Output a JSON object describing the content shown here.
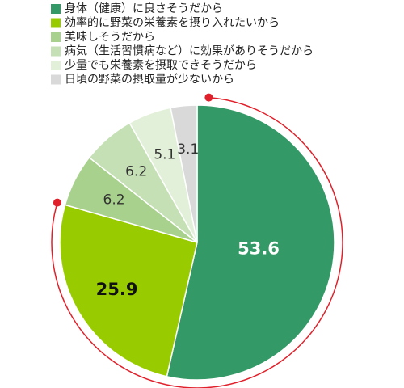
{
  "chart_data": {
    "type": "pie",
    "categories": [
      "身体（健康）に良さそうだから",
      "効率的に野菜の栄養素を摂り入れたいから",
      "美味しそうだから",
      "病気（生活習慣病など）に効果がありそうだから",
      "少量でも栄養素を摂取できそうだから",
      "日頃の野菜の摂取量が少ないから"
    ],
    "values": [
      53.6,
      25.9,
      6.2,
      6.2,
      5.1,
      3.1
    ],
    "colors": [
      "#339966",
      "#99cc00",
      "#a9d18e",
      "#c5e0b4",
      "#e2f0d9",
      "#d9d9d9"
    ]
  }
}
